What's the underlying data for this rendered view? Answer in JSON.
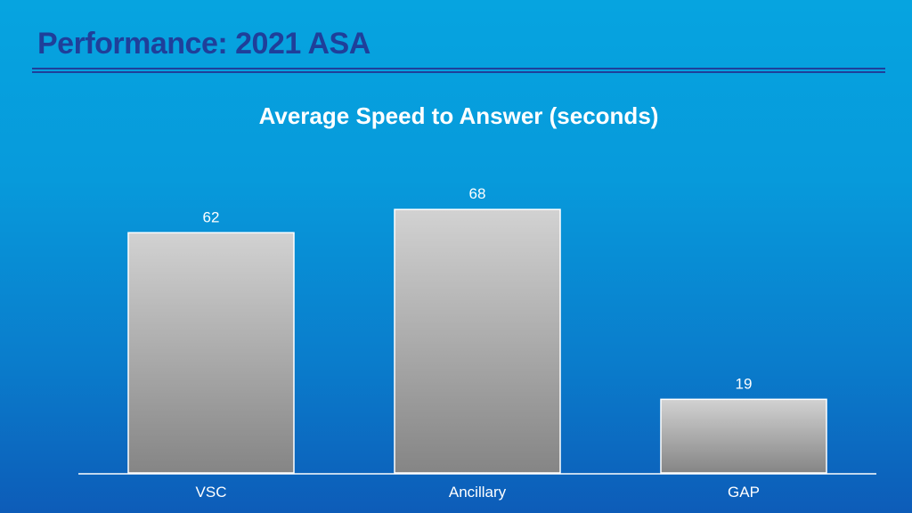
{
  "slide": {
    "title": "Performance: 2021 ASA"
  },
  "colors": {
    "title": "#1f3f9a",
    "bar_top": "#d2d2d2",
    "bar_bottom": "#858585",
    "bar_stroke": "#ffffff",
    "axis": "#ffffff"
  },
  "chart_data": {
    "type": "bar",
    "title": "Average Speed to Answer (seconds)",
    "categories": [
      "VSC",
      "Ancillary",
      "GAP"
    ],
    "values": [
      62,
      68,
      19
    ],
    "data_labels": [
      "62",
      "68",
      "19"
    ],
    "xlabel": "",
    "ylabel": "",
    "ylim": [
      0,
      80
    ],
    "grid": false,
    "legend": "none"
  }
}
